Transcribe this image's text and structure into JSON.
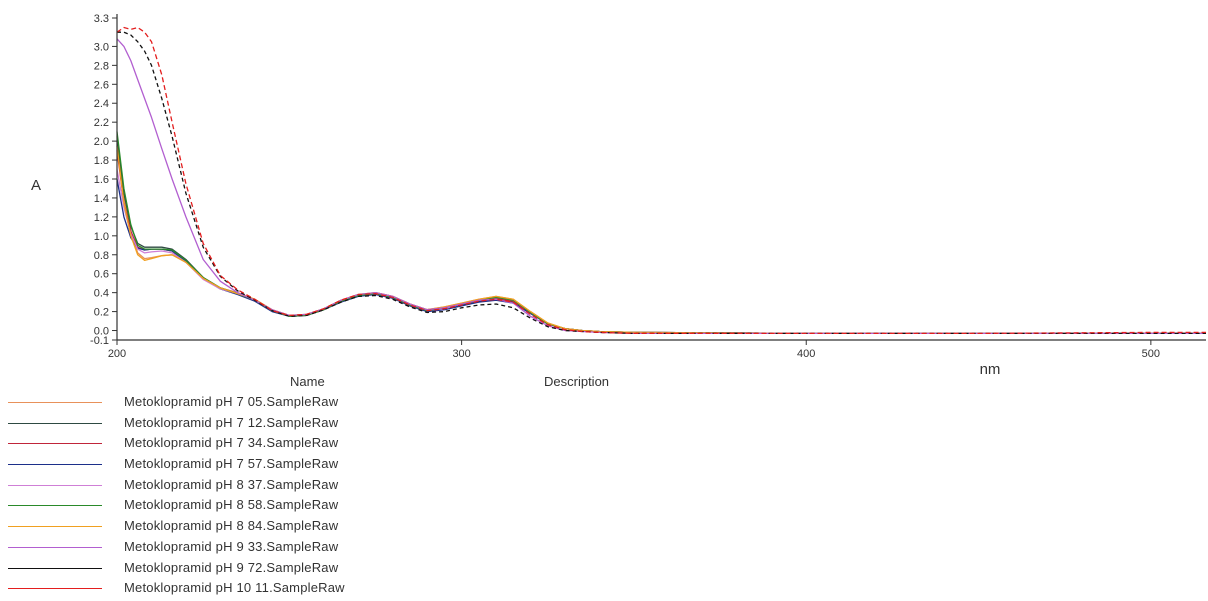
{
  "chart_data": {
    "type": "line",
    "xlabel": "nm",
    "ylabel": "A",
    "xlim": [
      200,
      516
    ],
    "ylim": [
      -0.1,
      3.3
    ],
    "xticks": [
      200,
      300,
      400,
      500
    ],
    "yticks": [
      "-0.1",
      "0.0",
      "0.2",
      "0.4",
      "0.6",
      "0.8",
      "1.0",
      "1.2",
      "1.4",
      "1.6",
      "1.8",
      "2.0",
      "2.2",
      "2.4",
      "2.6",
      "2.8",
      "3.0",
      "3.3"
    ],
    "legend_headers": {
      "name": "Name",
      "description": "Description"
    },
    "series": [
      {
        "name": "Metoklopramid pH 7  05.SampleRaw",
        "color": "#e8915a",
        "dash": "",
        "x": [
          200,
          202,
          204,
          206,
          208,
          210,
          213,
          216,
          220,
          225,
          230,
          235,
          240,
          245,
          250,
          255,
          260,
          265,
          270,
          275,
          280,
          285,
          290,
          295,
          300,
          305,
          310,
          315,
          320,
          325,
          330,
          335,
          340,
          350,
          400,
          450,
          500,
          516
        ],
        "y": [
          2.05,
          1.4,
          1.05,
          0.82,
          0.76,
          0.77,
          0.79,
          0.8,
          0.72,
          0.55,
          0.45,
          0.4,
          0.33,
          0.22,
          0.16,
          0.17,
          0.23,
          0.32,
          0.38,
          0.4,
          0.36,
          0.28,
          0.22,
          0.25,
          0.29,
          0.33,
          0.36,
          0.33,
          0.2,
          0.08,
          0.02,
          0.0,
          -0.01,
          -0.02,
          -0.03,
          -0.03,
          -0.03,
          -0.03
        ]
      },
      {
        "name": "Metoklopramid pH 7  12.SampleRaw",
        "color": "#2e4a42",
        "dash": "",
        "x": [
          200,
          202,
          204,
          206,
          208,
          210,
          213,
          216,
          220,
          225,
          230,
          235,
          240,
          245,
          250,
          255,
          260,
          265,
          270,
          275,
          280,
          285,
          290,
          295,
          300,
          305,
          310,
          315,
          320,
          325,
          330,
          335,
          340,
          350,
          400,
          450,
          500,
          516
        ],
        "y": [
          2.0,
          1.45,
          1.1,
          0.92,
          0.88,
          0.88,
          0.88,
          0.86,
          0.75,
          0.56,
          0.45,
          0.39,
          0.32,
          0.21,
          0.15,
          0.16,
          0.22,
          0.31,
          0.37,
          0.39,
          0.35,
          0.27,
          0.21,
          0.23,
          0.27,
          0.31,
          0.33,
          0.3,
          0.18,
          0.07,
          0.02,
          0.0,
          -0.01,
          -0.02,
          -0.03,
          -0.03,
          -0.03,
          -0.03
        ]
      },
      {
        "name": "Metoklopramid pH 7  34.SampleRaw",
        "color": "#c0253a",
        "dash": "",
        "x": [
          200,
          202,
          204,
          206,
          208,
          210,
          213,
          216,
          220,
          225,
          230,
          235,
          240,
          245,
          250,
          255,
          260,
          265,
          270,
          275,
          280,
          285,
          290,
          295,
          300,
          305,
          310,
          315,
          320,
          325,
          330,
          335,
          340,
          350,
          400,
          450,
          500,
          516
        ],
        "y": [
          1.9,
          1.35,
          1.05,
          0.88,
          0.85,
          0.86,
          0.86,
          0.84,
          0.73,
          0.55,
          0.44,
          0.39,
          0.32,
          0.21,
          0.15,
          0.16,
          0.22,
          0.31,
          0.37,
          0.4,
          0.36,
          0.28,
          0.22,
          0.24,
          0.28,
          0.32,
          0.34,
          0.31,
          0.19,
          0.07,
          0.02,
          0.0,
          -0.01,
          -0.02,
          -0.03,
          -0.03,
          -0.03,
          -0.03
        ]
      },
      {
        "name": "Metoklopramid pH 7  57.SampleRaw",
        "color": "#1c2f8a",
        "dash": "",
        "x": [
          200,
          202,
          204,
          206,
          208,
          210,
          213,
          216,
          220,
          225,
          230,
          235,
          240,
          245,
          250,
          255,
          260,
          265,
          270,
          275,
          280,
          285,
          290,
          295,
          300,
          305,
          310,
          315,
          320,
          325,
          330,
          335,
          340,
          350,
          400,
          450,
          500,
          516
        ],
        "y": [
          1.6,
          1.2,
          0.98,
          0.87,
          0.85,
          0.86,
          0.86,
          0.84,
          0.73,
          0.55,
          0.44,
          0.38,
          0.31,
          0.2,
          0.15,
          0.16,
          0.22,
          0.3,
          0.36,
          0.38,
          0.34,
          0.26,
          0.2,
          0.22,
          0.26,
          0.3,
          0.32,
          0.29,
          0.18,
          0.07,
          0.02,
          0.0,
          -0.01,
          -0.02,
          -0.03,
          -0.03,
          -0.03,
          -0.03
        ]
      },
      {
        "name": "Metoklopramid pH 8  37.SampleRaw",
        "color": "#cf7fd6",
        "dash": "",
        "x": [
          200,
          202,
          204,
          206,
          208,
          210,
          213,
          216,
          220,
          225,
          230,
          235,
          240,
          245,
          250,
          255,
          260,
          265,
          270,
          275,
          280,
          285,
          290,
          295,
          300,
          305,
          310,
          315,
          320,
          325,
          330,
          335,
          340,
          350,
          400,
          450,
          500,
          516
        ],
        "y": [
          1.7,
          1.3,
          1.02,
          0.86,
          0.82,
          0.83,
          0.84,
          0.82,
          0.72,
          0.54,
          0.44,
          0.39,
          0.32,
          0.21,
          0.15,
          0.16,
          0.22,
          0.31,
          0.37,
          0.39,
          0.35,
          0.27,
          0.21,
          0.23,
          0.28,
          0.32,
          0.35,
          0.32,
          0.19,
          0.07,
          0.02,
          0.0,
          -0.01,
          -0.02,
          -0.03,
          -0.03,
          -0.03,
          -0.03
        ]
      },
      {
        "name": "Metoklopramid pH 8  58.SampleRaw",
        "color": "#2a8a2a",
        "dash": "",
        "x": [
          200,
          202,
          204,
          206,
          208,
          210,
          213,
          216,
          220,
          225,
          230,
          235,
          240,
          245,
          250,
          255,
          260,
          265,
          270,
          275,
          280,
          285,
          290,
          295,
          300,
          305,
          310,
          315,
          320,
          325,
          330,
          335,
          340,
          350,
          400,
          450,
          500,
          516
        ],
        "y": [
          2.1,
          1.5,
          1.12,
          0.9,
          0.86,
          0.86,
          0.86,
          0.85,
          0.74,
          0.56,
          0.45,
          0.39,
          0.32,
          0.21,
          0.15,
          0.16,
          0.22,
          0.31,
          0.37,
          0.39,
          0.35,
          0.27,
          0.21,
          0.24,
          0.28,
          0.32,
          0.35,
          0.32,
          0.19,
          0.07,
          0.02,
          0.0,
          -0.01,
          -0.02,
          -0.03,
          -0.03,
          -0.03,
          -0.03
        ]
      },
      {
        "name": "Metoklopramid pH 8  84.SampleRaw",
        "color": "#f0a020",
        "dash": "",
        "x": [
          200,
          202,
          204,
          206,
          208,
          210,
          213,
          216,
          220,
          225,
          230,
          235,
          240,
          245,
          250,
          255,
          260,
          265,
          270,
          275,
          280,
          285,
          290,
          295,
          300,
          305,
          310,
          315,
          320,
          325,
          330,
          335,
          340,
          350,
          400,
          450,
          500,
          516
        ],
        "y": [
          1.95,
          1.35,
          1.0,
          0.8,
          0.74,
          0.76,
          0.79,
          0.8,
          0.72,
          0.55,
          0.45,
          0.39,
          0.33,
          0.22,
          0.16,
          0.17,
          0.23,
          0.32,
          0.38,
          0.4,
          0.36,
          0.28,
          0.22,
          0.25,
          0.29,
          0.33,
          0.36,
          0.33,
          0.2,
          0.08,
          0.02,
          0.0,
          -0.01,
          -0.02,
          -0.03,
          -0.03,
          -0.03,
          -0.03
        ]
      },
      {
        "name": "Metoklopramid pH 9  33.SampleRaw",
        "color": "#b25fd0",
        "dash": "",
        "x": [
          200,
          202,
          204,
          206,
          208,
          210,
          213,
          216,
          220,
          225,
          230,
          235,
          240,
          245,
          250,
          255,
          260,
          265,
          270,
          275,
          280,
          285,
          290,
          295,
          300,
          305,
          310,
          315,
          320,
          325,
          330,
          335,
          340,
          350,
          400,
          450,
          500,
          516
        ],
        "y": [
          3.08,
          3.0,
          2.85,
          2.65,
          2.45,
          2.25,
          1.92,
          1.6,
          1.2,
          0.75,
          0.52,
          0.4,
          0.32,
          0.22,
          0.16,
          0.17,
          0.23,
          0.32,
          0.38,
          0.4,
          0.36,
          0.28,
          0.22,
          0.24,
          0.28,
          0.32,
          0.33,
          0.29,
          0.15,
          0.05,
          0.0,
          -0.01,
          -0.02,
          -0.03,
          -0.03,
          -0.03,
          -0.03,
          -0.03
        ]
      },
      {
        "name": "Metoklopramid pH 9  72.SampleRaw",
        "color": "#111111",
        "dash": "4 3",
        "x": [
          200,
          202,
          204,
          206,
          208,
          210,
          213,
          216,
          220,
          225,
          230,
          235,
          240,
          245,
          250,
          255,
          260,
          265,
          270,
          275,
          280,
          285,
          290,
          295,
          300,
          305,
          310,
          315,
          320,
          325,
          330,
          335,
          340,
          350,
          400,
          450,
          500,
          516
        ],
        "y": [
          3.15,
          3.15,
          3.12,
          3.05,
          2.95,
          2.8,
          2.45,
          2.05,
          1.45,
          0.88,
          0.57,
          0.42,
          0.32,
          0.21,
          0.15,
          0.16,
          0.22,
          0.3,
          0.36,
          0.37,
          0.33,
          0.25,
          0.19,
          0.2,
          0.24,
          0.27,
          0.28,
          0.24,
          0.13,
          0.04,
          0.0,
          -0.01,
          -0.02,
          -0.03,
          -0.03,
          -0.03,
          -0.03,
          -0.03
        ]
      },
      {
        "name": "Metoklopramid pH 10  11.SampleRaw",
        "color": "#e31e1e",
        "dash": "5 3",
        "x": [
          200,
          202,
          204,
          206,
          208,
          210,
          213,
          216,
          220,
          225,
          230,
          235,
          240,
          245,
          250,
          255,
          260,
          265,
          270,
          275,
          280,
          285,
          290,
          295,
          300,
          305,
          310,
          315,
          320,
          325,
          330,
          335,
          340,
          350,
          400,
          450,
          500,
          516
        ],
        "y": [
          3.15,
          3.2,
          3.18,
          3.2,
          3.15,
          3.05,
          2.7,
          2.2,
          1.55,
          0.92,
          0.58,
          0.43,
          0.33,
          0.21,
          0.16,
          0.17,
          0.23,
          0.32,
          0.38,
          0.39,
          0.35,
          0.27,
          0.21,
          0.23,
          0.27,
          0.31,
          0.33,
          0.3,
          0.17,
          0.06,
          0.01,
          -0.01,
          -0.02,
          -0.03,
          -0.03,
          -0.03,
          -0.02,
          -0.02
        ]
      }
    ]
  }
}
